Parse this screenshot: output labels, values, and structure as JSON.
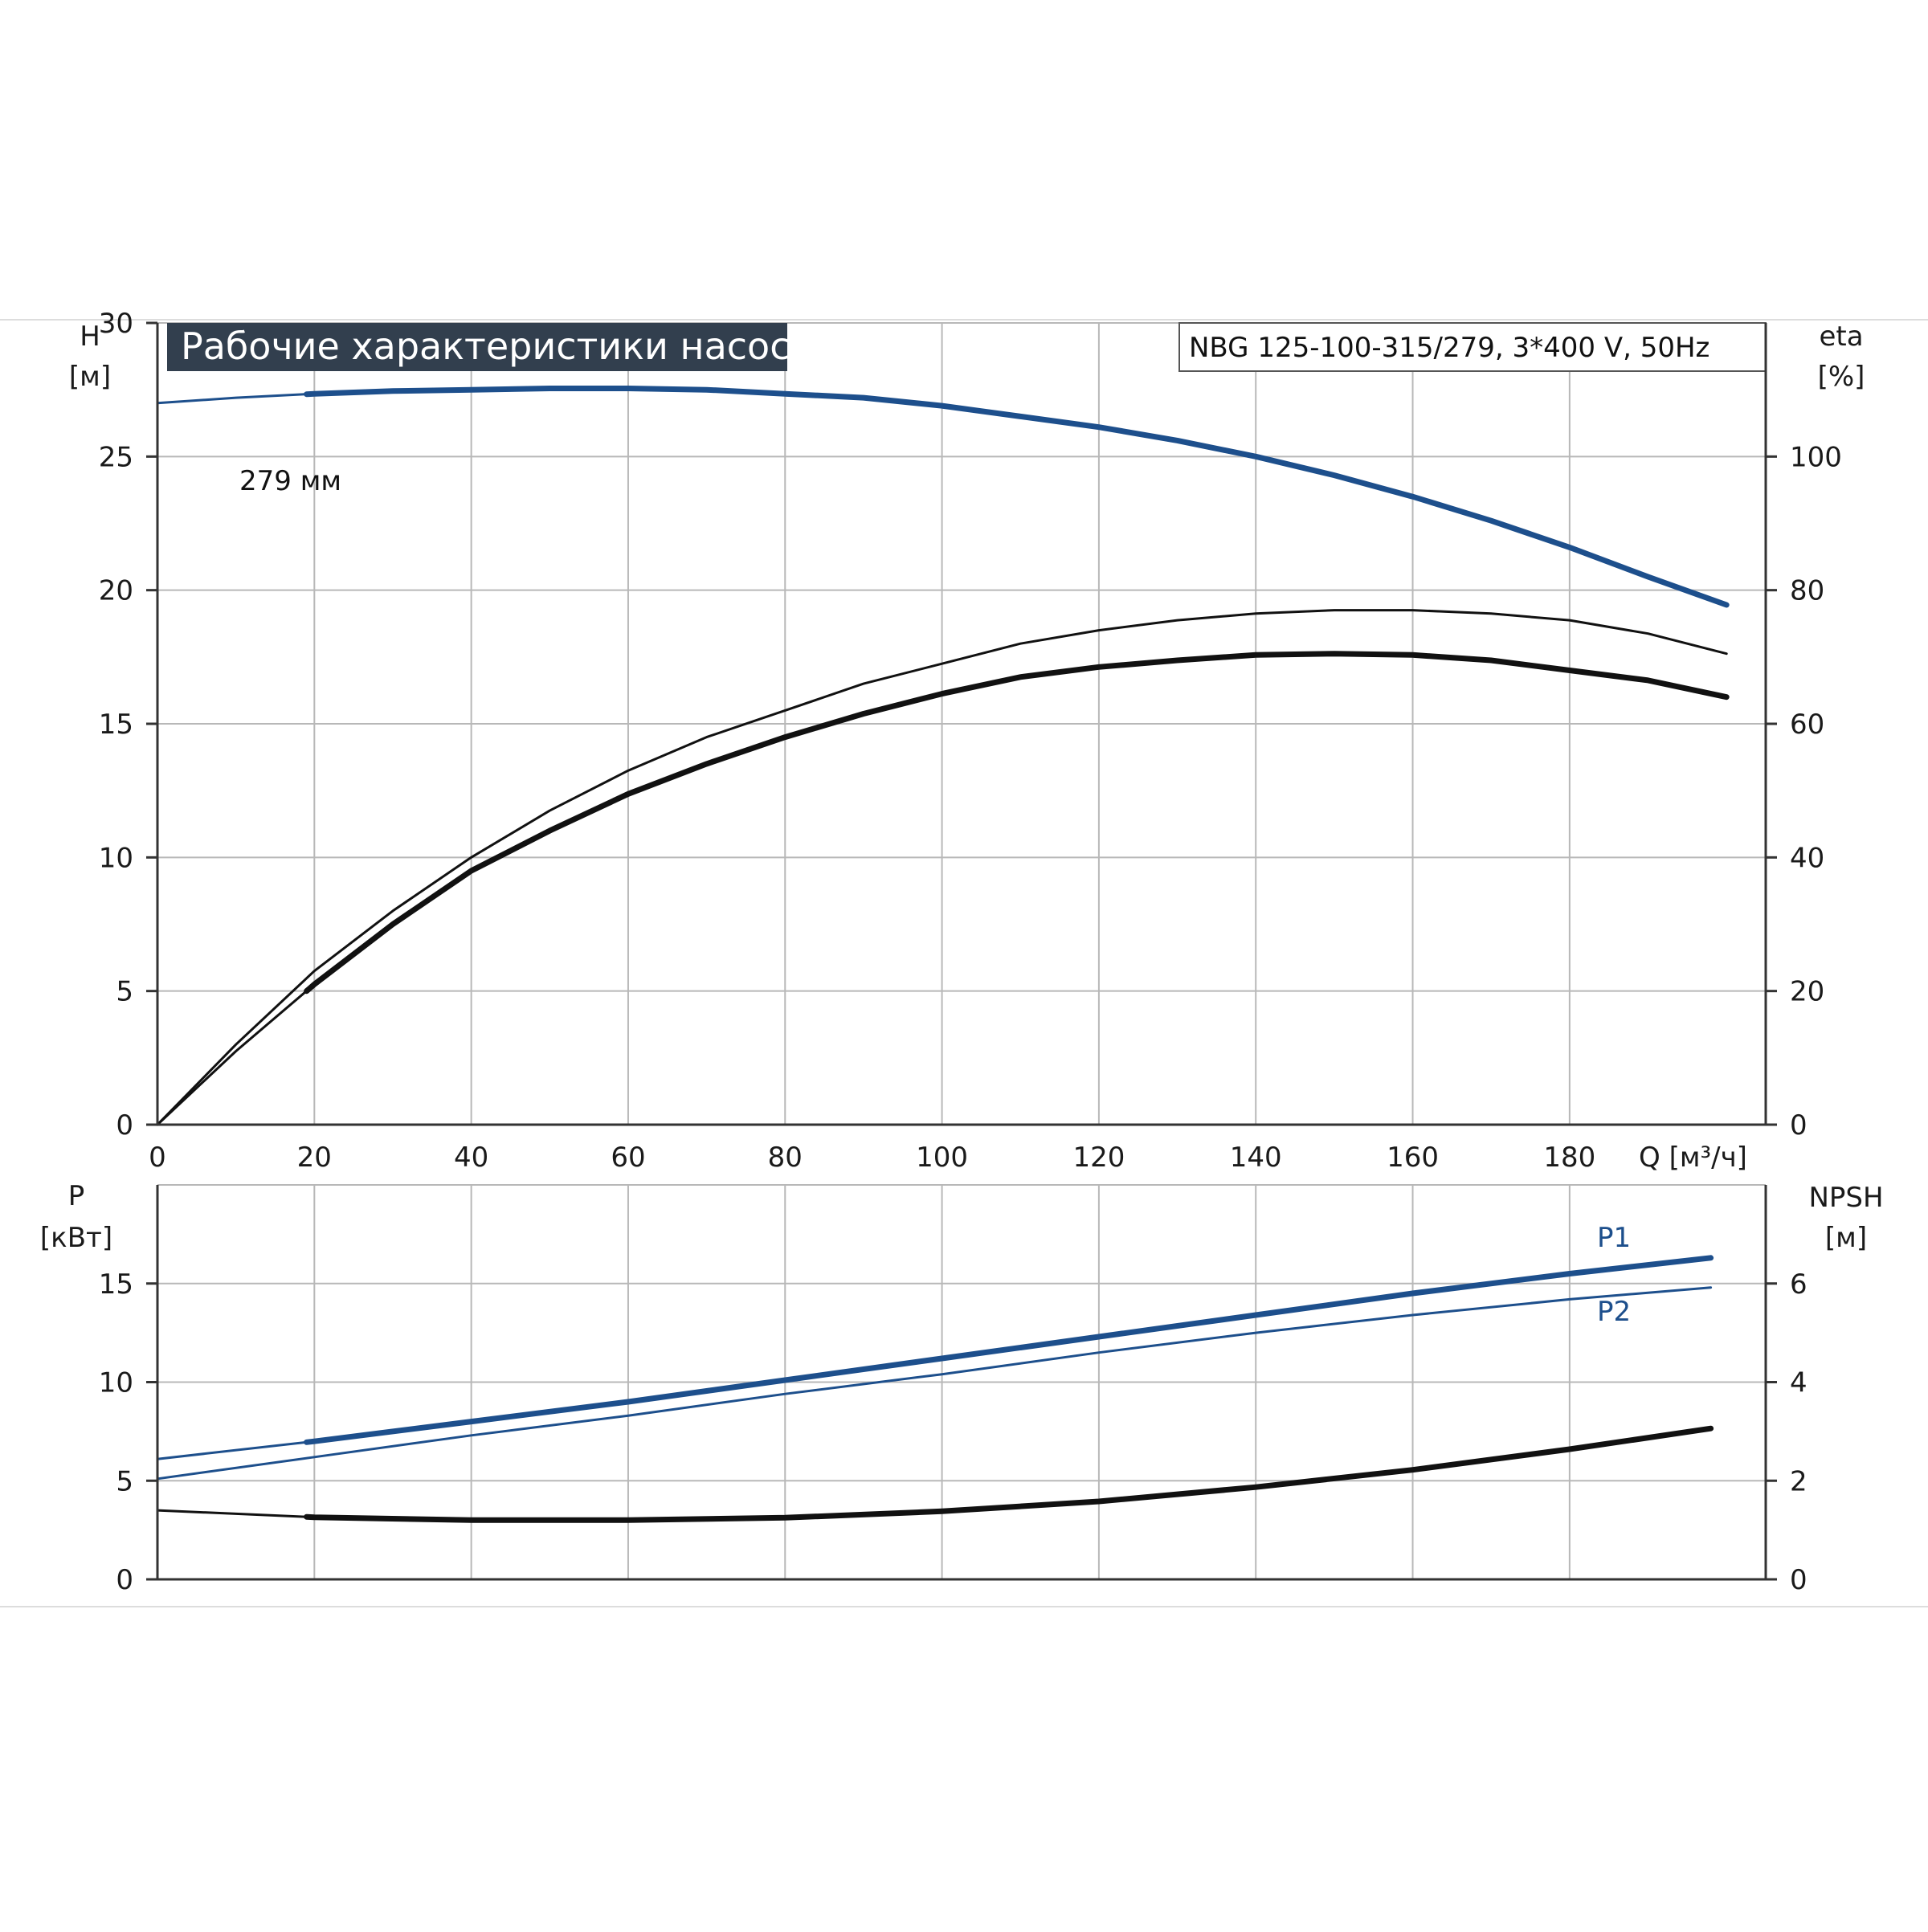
{
  "header": {
    "title": "Рабочие характеристики насоса",
    "model": "NBG 125-100-315/279, 3*400 V, 50Hz"
  },
  "colors": {
    "blue": "#1d4f8c",
    "black": "#111111",
    "grid": "#b8b8b8",
    "title_bg": "#323f4e"
  },
  "chart_data": [
    {
      "id": "top",
      "type": "line",
      "xlim": [
        0,
        205
      ],
      "x_ticks": [
        "0",
        "20",
        "40",
        "60",
        "80",
        "100",
        "120",
        "140",
        "160",
        "180"
      ],
      "xlabel": "Q [м³/ч]",
      "ylim": [
        0,
        30
      ],
      "y_ticks": [
        "0",
        "5",
        "10",
        "15",
        "20",
        "25",
        "30"
      ],
      "ylabel_top": "H",
      "ylabel_unit": "[м]",
      "y2lim": [
        0,
        120
      ],
      "y2_ticks": [
        "0",
        "20",
        "40",
        "60",
        "80",
        "100"
      ],
      "y2label_top": "eta",
      "y2label_unit": "[%]",
      "grid": true,
      "series": [
        {
          "name": "279 мм",
          "axis": "left",
          "color": "#1d4f8c",
          "x": [
            0,
            10,
            20,
            30,
            40,
            50,
            60,
            70,
            80,
            90,
            100,
            110,
            120,
            130,
            140,
            150,
            160,
            170,
            180,
            190,
            200
          ],
          "y": [
            27.0,
            27.2,
            27.35,
            27.45,
            27.5,
            27.55,
            27.55,
            27.5,
            27.35,
            27.2,
            26.9,
            26.5,
            26.1,
            25.6,
            25.0,
            24.3,
            23.5,
            22.6,
            21.6,
            20.5,
            19.45
          ],
          "bold_from": 19
        },
        {
          "axis": "right",
          "color": "#111111",
          "x": [
            0,
            10,
            20,
            30,
            40,
            50,
            60,
            70,
            80,
            90,
            100,
            110,
            120,
            130,
            140,
            150,
            160,
            170,
            180,
            190,
            200
          ],
          "y": [
            0,
            12,
            23,
            32,
            40,
            47,
            53,
            58,
            62,
            66,
            69,
            72,
            74,
            75.5,
            76.5,
            77,
            77,
            76.5,
            75.5,
            73.5,
            70.5
          ],
          "bold_from": null
        },
        {
          "axis": "right",
          "color": "#111111",
          "x": [
            0,
            10,
            20,
            30,
            40,
            50,
            60,
            70,
            80,
            90,
            100,
            110,
            120,
            130,
            140,
            150,
            160,
            170,
            180,
            190,
            200
          ],
          "y": [
            0,
            11,
            21,
            30,
            38,
            44,
            49.5,
            54,
            58,
            61.5,
            64.5,
            67,
            68.5,
            69.5,
            70.3,
            70.5,
            70.3,
            69.5,
            68,
            66.5,
            64
          ],
          "bold_from": 19
        }
      ]
    },
    {
      "id": "bottom",
      "type": "line",
      "xlim": [
        0,
        205
      ],
      "ylim": [
        0,
        20
      ],
      "y_ticks": [
        "0",
        "5",
        "10",
        "15"
      ],
      "ylabel_top": "P",
      "ylabel_unit": "[кВт]",
      "y2lim": [
        0,
        8
      ],
      "y2_ticks": [
        "0",
        "2",
        "4",
        "6"
      ],
      "y2label_top": "NPSH",
      "y2label_unit": "[м]",
      "grid": true,
      "series": [
        {
          "name": "P1",
          "axis": "left",
          "color": "#1d4f8c",
          "x": [
            0,
            20,
            40,
            60,
            80,
            100,
            120,
            140,
            160,
            180,
            198
          ],
          "y": [
            6.1,
            7.0,
            8.0,
            9.0,
            10.1,
            11.2,
            12.3,
            13.4,
            14.5,
            15.5,
            16.3
          ],
          "bold_from": 19
        },
        {
          "name": "P2",
          "axis": "left",
          "color": "#1d4f8c",
          "x": [
            0,
            20,
            40,
            60,
            80,
            100,
            120,
            140,
            160,
            180,
            198
          ],
          "y": [
            5.1,
            6.2,
            7.3,
            8.3,
            9.4,
            10.4,
            11.5,
            12.5,
            13.4,
            14.2,
            14.8
          ],
          "bold_from": null
        },
        {
          "axis": "right",
          "color": "#111111",
          "x": [
            0,
            20,
            40,
            60,
            80,
            100,
            120,
            140,
            160,
            180,
            198
          ],
          "y": [
            1.4,
            1.26,
            1.2,
            1.2,
            1.25,
            1.38,
            1.58,
            1.87,
            2.22,
            2.64,
            3.06
          ],
          "bold_from": 19
        }
      ]
    }
  ]
}
